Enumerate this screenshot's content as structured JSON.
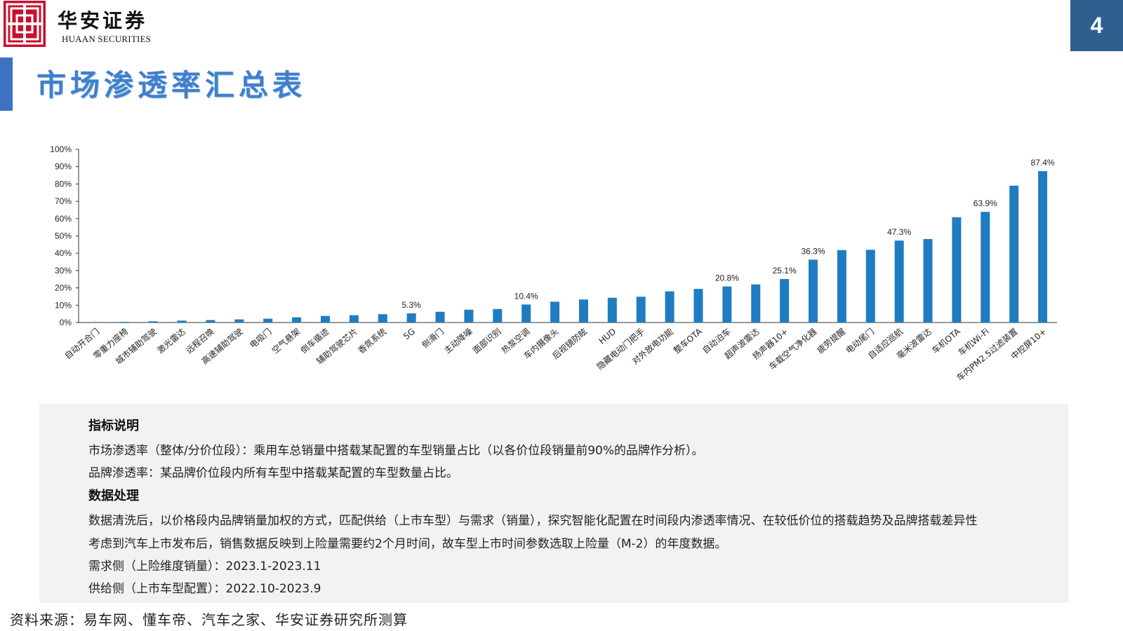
{
  "header": {
    "brand_cn": "华安证券",
    "brand_en": "HUAAN SECURITIES",
    "page_number": "4",
    "logo_icon": "huaan-logo-icon"
  },
  "title": "市场渗透率汇总表",
  "colors": {
    "bar": "#1f7cc1",
    "accent": "#3d72c2",
    "badge": "#2e5f8f",
    "logo": "#c8102e"
  },
  "chart_data": {
    "type": "bar",
    "title": "",
    "xlabel": "",
    "ylabel": "",
    "ylim": [
      0,
      100
    ],
    "y_ticks": [
      "0%",
      "10%",
      "20%",
      "30%",
      "40%",
      "50%",
      "60%",
      "70%",
      "80%",
      "90%",
      "100%"
    ],
    "grid": false,
    "categories": [
      "自动开合门",
      "零重力座椅",
      "城市辅助驾驶",
      "激光雷达",
      "远程召唤",
      "高速辅助驾驶",
      "电吸门",
      "空气悬架",
      "倒车循迹",
      "辅助驾驶芯片",
      "香氛系统",
      "5G",
      "侧滑门",
      "主动降噪",
      "面部识别",
      "热泵空调",
      "车内摄像头",
      "后视镜防眩",
      "HUD",
      "隐藏电动门把手",
      "对外放电功能",
      "整车OTA",
      "自动泊车",
      "超声波雷达",
      "扬声器10+",
      "车载空气净化器",
      "疲劳提醒",
      "电动尾门",
      "自适应巡航",
      "毫米波雷达",
      "车机OTA",
      "车机Wi-Fi",
      "车内PM2.5过滤装置",
      "中控屏10+"
    ],
    "values": [
      0.3,
      0.4,
      0.7,
      1.1,
      1.4,
      1.8,
      2.2,
      3.0,
      3.8,
      4.2,
      4.8,
      5.3,
      6.2,
      7.4,
      7.8,
      10.4,
      12.0,
      13.3,
      14.3,
      14.9,
      18.0,
      19.4,
      20.8,
      22.0,
      25.1,
      36.3,
      41.8,
      42.0,
      47.3,
      48.2,
      60.8,
      63.9,
      79.0,
      87.4
    ],
    "data_labels": {
      "11": "5.3%",
      "15": "10.4%",
      "22": "20.8%",
      "24": "25.1%",
      "25": "36.3%",
      "28": "47.3%",
      "31": "63.9%",
      "33": "87.4%"
    }
  },
  "info": {
    "heading1": "指标说明",
    "line1": "市场渗透率（整体/分价位段）：乘用车总销量中搭载某配置的车型销量占比（以各价位段销量前90%的品牌作分析）。",
    "line2": "品牌渗透率：某品牌价位段内所有车型中搭载某配置的车型数量占比。",
    "heading2": "数据处理",
    "line3": "数据清洗后，以价格段内品牌销量加权的方式，匹配供给（上市车型）与需求（销量），探究智能化配置在时间段内渗透率情况、在较低价位的搭载趋势及品牌搭载差异性",
    "line4": "考虑到汽车上市发布后，销售数据反映到上险量需要约2个月时间，故车型上市时间参数选取上险量（M-2）的年度数据。",
    "line5": "需求侧（上险维度销量）：2023.1-2023.11",
    "line6": "供给侧（上市车型配置）：2022.10-2023.9"
  },
  "source": "资料来源：易车网、懂车帝、汽车之家、华安证券研究所测算"
}
